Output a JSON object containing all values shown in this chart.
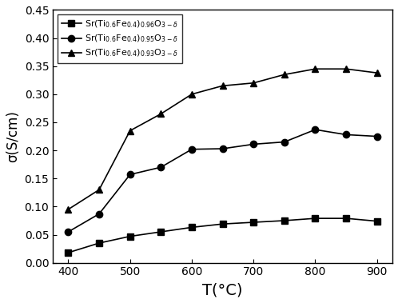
{
  "title": "",
  "xlabel": "T(°C)",
  "ylabel": "σ(S/cm)",
  "xlim": [
    375,
    925
  ],
  "ylim": [
    0.0,
    0.45
  ],
  "xticks": [
    400,
    500,
    600,
    700,
    800,
    900
  ],
  "yticks": [
    0.0,
    0.05,
    0.1,
    0.15,
    0.2,
    0.25,
    0.3,
    0.35,
    0.4,
    0.45
  ],
  "series": [
    {
      "x": [
        400,
        450,
        500,
        550,
        600,
        650,
        700,
        750,
        800,
        850,
        900
      ],
      "y": [
        0.018,
        0.035,
        0.047,
        0.055,
        0.063,
        0.069,
        0.072,
        0.075,
        0.079,
        0.079,
        0.074
      ],
      "marker": "s",
      "color": "black",
      "label": "Sr(Ti$_{0.6}$Fe$_{0.4}$)$_{0.96}$O$_{3-\\delta}$"
    },
    {
      "x": [
        400,
        450,
        500,
        550,
        600,
        650,
        700,
        750,
        800,
        850,
        900
      ],
      "y": [
        0.055,
        0.087,
        0.157,
        0.17,
        0.202,
        0.203,
        0.211,
        0.215,
        0.237,
        0.228,
        0.225
      ],
      "marker": "o",
      "color": "black",
      "label": "Sr(Ti$_{0.6}$Fe$_{0.4}$)$_{0.95}$O$_{3-\\delta}$"
    },
    {
      "x": [
        400,
        450,
        500,
        550,
        600,
        650,
        700,
        750,
        800,
        850,
        900
      ],
      "y": [
        0.095,
        0.13,
        0.235,
        0.265,
        0.3,
        0.315,
        0.32,
        0.335,
        0.345,
        0.345,
        0.338
      ],
      "marker": "^",
      "color": "black",
      "label": "Sr(Ti$_{0.6}$Fe$_{0.4}$)$_{0.93}$O$_{3-\\delta}$"
    }
  ],
  "legend_loc": "upper left",
  "background_color": "#ffffff",
  "markersize": 6,
  "linewidth": 1.2,
  "xlabel_fontsize": 14,
  "ylabel_fontsize": 12,
  "tick_fontsize": 10,
  "legend_fontsize": 8
}
